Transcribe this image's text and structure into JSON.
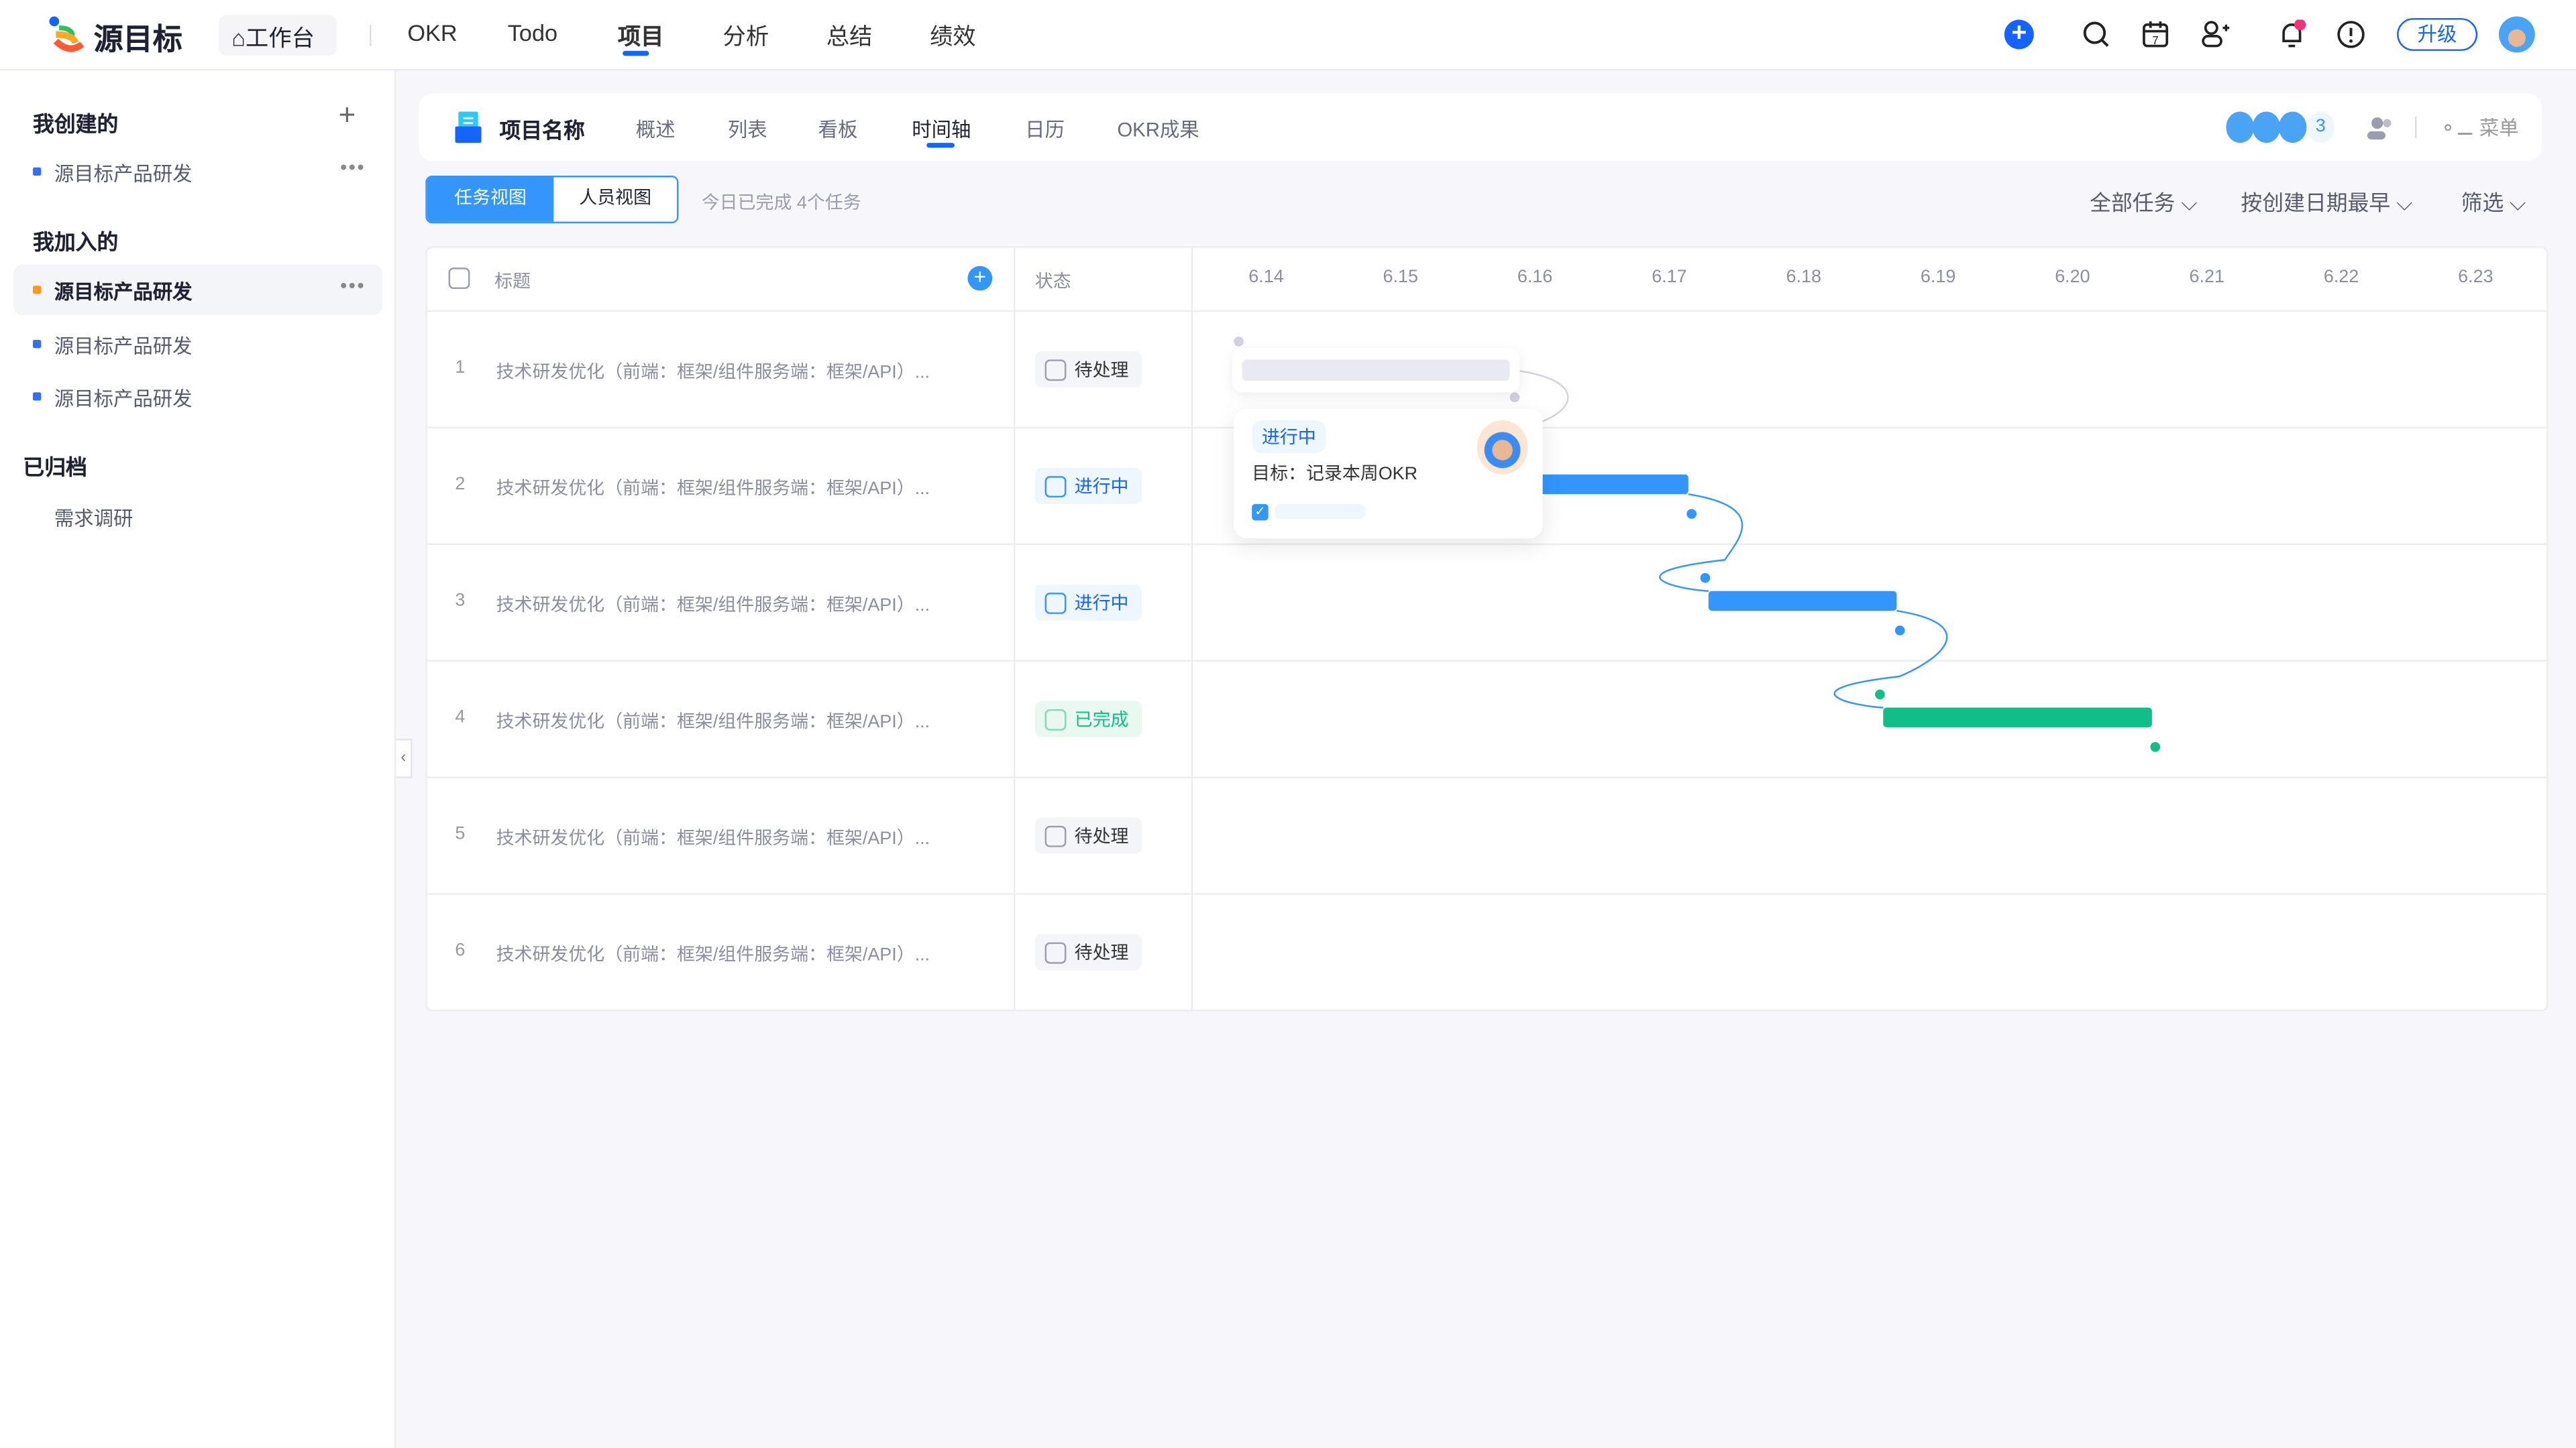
{
  "brand": {
    "name": "源目标"
  },
  "topnav": {
    "workbench": "工作台",
    "items": [
      "OKR",
      "Todo",
      "项目",
      "分析",
      "总结",
      "绩效"
    ],
    "active": 2,
    "upgrade": "升级"
  },
  "sidebar": {
    "created_title": "我创建的",
    "created": [
      {
        "label": "源目标产品研发",
        "color": "#3370ff"
      }
    ],
    "joined_title": "我加入的",
    "joined": [
      {
        "label": "源目标产品研发",
        "color": "#ff9a1f",
        "active": true
      },
      {
        "label": "源目标产品研发",
        "color": "#3370ff"
      },
      {
        "label": "源目标产品研发",
        "color": "#3370ff"
      }
    ],
    "archived_title": "已归档",
    "archived": [
      "需求调研"
    ]
  },
  "project": {
    "name": "项目名称",
    "tabs": [
      "概述",
      "列表",
      "看板",
      "时间轴",
      "日历",
      "OKR成果"
    ],
    "active_tab": 3,
    "member_count": "3",
    "menu": "菜单"
  },
  "toolbar": {
    "view_task": "任务视图",
    "view_people": "人员视图",
    "done_today": "今日已完成 4个任务",
    "filter_all": "全部任务",
    "sort": "按创建日期最早",
    "filter": "筛选"
  },
  "table": {
    "col_title": "标题",
    "col_status": "状态",
    "dates": [
      "6.14",
      "6.15",
      "6.16",
      "6.17",
      "6.18",
      "6.19",
      "6.20",
      "6.21",
      "6.22",
      "6.23"
    ],
    "rows": [
      {
        "num": "1",
        "title": "技术研发优化（前端：框架/组件服务端：框架/API）...",
        "status": "待处理",
        "state": "todo"
      },
      {
        "num": "2",
        "title": "技术研发优化（前端：框架/组件服务端：框架/API）...",
        "status": "进行中",
        "state": "doing",
        "start": 16.0,
        "end": 17.15
      },
      {
        "num": "3",
        "title": "技术研发优化（前端：框架/组件服务端：框架/API）...",
        "status": "进行中",
        "state": "doing",
        "start": 17.3,
        "end": 18.7
      },
      {
        "num": "4",
        "title": "技术研发优化（前端：框架/组件服务端：框架/API）...",
        "status": "已完成",
        "state": "done",
        "start": 18.6,
        "end": 20.6
      },
      {
        "num": "5",
        "title": "技术研发优化（前端：框架/组件服务端：框架/API）...",
        "status": "待处理",
        "state": "todo"
      },
      {
        "num": "6",
        "title": "技术研发优化（前端：框架/组件服务端：框架/API）...",
        "status": "待处理",
        "state": "todo"
      }
    ]
  },
  "popover": {
    "status": "进行中",
    "goal": "目标：记录本周OKR"
  },
  "colors": {
    "accent": "#1664ff",
    "bar_doing": "#3496fa",
    "bar_done": "#0fbf87",
    "notify": "#f0327a"
  }
}
